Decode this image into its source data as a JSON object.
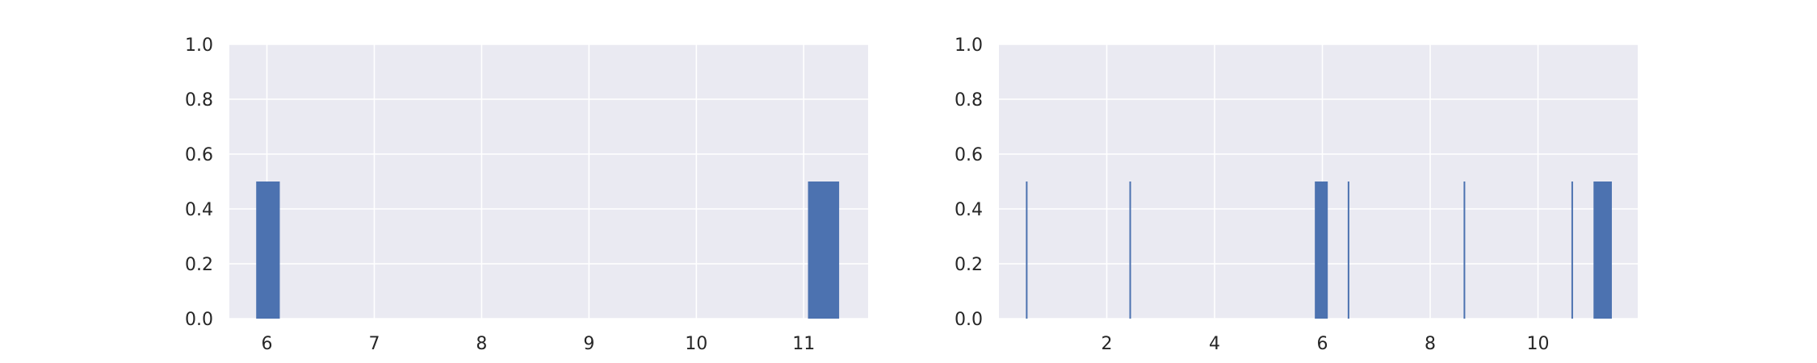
{
  "chart_data": [
    {
      "type": "bar",
      "xlim": [
        5.65,
        11.6
      ],
      "ylim": [
        0,
        1.0
      ],
      "xticks": [
        6,
        7,
        8,
        9,
        10,
        11
      ],
      "xtick_labels": [
        "6",
        "7",
        "8",
        "9",
        "10",
        "11"
      ],
      "yticks": [
        0.0,
        0.2,
        0.4,
        0.6,
        0.8,
        1.0
      ],
      "ytick_labels": [
        "0.0",
        "0.2",
        "0.4",
        "0.6",
        "0.8",
        "1.0"
      ],
      "grid": true,
      "bar_color": "#4c72b0",
      "background": "#eaeaf2",
      "bars": [
        {
          "x0": 5.9,
          "x1": 6.12,
          "value": 0.5
        },
        {
          "x0": 11.04,
          "x1": 11.33,
          "value": 0.5
        }
      ]
    },
    {
      "type": "bar",
      "xlim": [
        0.0,
        11.85
      ],
      "ylim": [
        0,
        1.0
      ],
      "xticks": [
        2,
        4,
        6,
        8,
        10
      ],
      "xtick_labels": [
        "2",
        "4",
        "6",
        "8",
        "10"
      ],
      "yticks": [
        0.0,
        0.2,
        0.4,
        0.6,
        0.8,
        1.0
      ],
      "ytick_labels": [
        "0.0",
        "0.2",
        "0.4",
        "0.6",
        "0.8",
        "1.0"
      ],
      "grid": true,
      "bar_color": "#4c72b0",
      "background": "#eaeaf2",
      "bars": [
        {
          "x0": 0.5,
          "x1": 0.53,
          "value": 0.5
        },
        {
          "x0": 2.42,
          "x1": 2.45,
          "value": 0.5
        },
        {
          "x0": 5.86,
          "x1": 6.1,
          "value": 0.5
        },
        {
          "x0": 6.47,
          "x1": 6.5,
          "value": 0.5
        },
        {
          "x0": 8.62,
          "x1": 8.65,
          "value": 0.5
        },
        {
          "x0": 10.62,
          "x1": 10.65,
          "value": 0.5
        },
        {
          "x0": 11.03,
          "x1": 11.37,
          "value": 0.5
        }
      ]
    }
  ]
}
